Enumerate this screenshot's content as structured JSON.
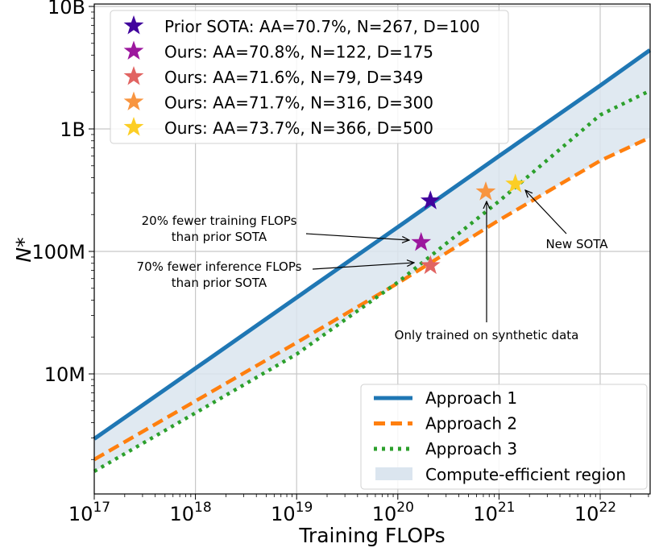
{
  "chart_data": {
    "type": "line",
    "xlabel": "Training FLOPs",
    "ylabel": "N*",
    "xscale": "log",
    "yscale": "log",
    "xlim": [
      1e+17,
      3.1e+22
    ],
    "ylim": [
      1050000.0,
      10500000000.0
    ],
    "grid": true,
    "x_ticks": [
      {
        "base": "10",
        "exp": "17",
        "value": 1e+17
      },
      {
        "base": "10",
        "exp": "18",
        "value": 1e+18
      },
      {
        "base": "10",
        "exp": "19",
        "value": 1e+19
      },
      {
        "base": "10",
        "exp": "20",
        "value": 1e+20
      },
      {
        "base": "10",
        "exp": "21",
        "value": 1e+21
      },
      {
        "base": "10",
        "exp": "22",
        "value": 1e+22
      }
    ],
    "y_ticks": [
      {
        "label": "10M",
        "value": 10000000.0
      },
      {
        "label": "100M",
        "value": 100000000.0
      },
      {
        "label": "1B",
        "value": 1000000000.0
      },
      {
        "label": "10B",
        "value": 10000000000.0
      }
    ],
    "x": [
      1e+17,
      1e+18,
      1e+19,
      1e+20,
      1e+21,
      1e+22,
      3.1e+22
    ],
    "series": [
      {
        "name": "Approach 1",
        "color": "#1f77b4",
        "style": "solid",
        "values": [
          2950000.0,
          11100000.0,
          42000000.0,
          158000000.0,
          600000000.0,
          2260000000.0,
          4400000000.0
        ]
      },
      {
        "name": "Approach 2",
        "color": "#ff7f0e",
        "style": "dashed",
        "values": [
          2000000.0,
          6000000.0,
          18000000.0,
          55000000.0,
          180000000.0,
          550000000.0,
          850000000.0
        ]
      },
      {
        "name": "Approach 3",
        "color": "#2ca02c",
        "style": "dotted",
        "values": [
          1600000.0,
          4800000.0,
          14500000.0,
          56000000.0,
          257000000.0,
          1300000000.0,
          2050000000.0
        ]
      }
    ],
    "region": {
      "name": "Compute-efficient region",
      "color": "#dbe5ef"
    },
    "legend_lines_position": "lower-right",
    "legend_points_position": "upper-left",
    "points": [
      {
        "label": "Prior SOTA: AA=70.7%, N=267, D=100",
        "x": 2.1e+20,
        "y": 267000000.0,
        "color": "#41049d"
      },
      {
        "label": "Ours: AA=70.8%, N=122, D=175",
        "x": 1.7e+20,
        "y": 122000000.0,
        "color": "#9c179e"
      },
      {
        "label": "Ours: AA=71.6%, N=79, D=349",
        "x": 2.1e+20,
        "y": 79000000.0,
        "color": "#e16462"
      },
      {
        "label": "Ours: AA=71.7%, N=316, D=300",
        "x": 7.4e+20,
        "y": 316000000.0,
        "color": "#f89540"
      },
      {
        "label": "Ours: AA=73.7%, N=366, D=500",
        "x": 1.45e+21,
        "y": 366000000.0,
        "color": "#fcce25"
      }
    ],
    "annotations": [
      {
        "lines": [
          "20% fewer training FLOPs",
          "than prior SOTA"
        ],
        "target_point": 1
      },
      {
        "lines": [
          "70% fewer inference FLOPs",
          "than prior SOTA"
        ],
        "target_point": 2
      },
      {
        "lines": [
          "Only trained on synthetic data"
        ],
        "target_point": 3
      },
      {
        "lines": [
          "New SOTA"
        ],
        "target_point": 4
      }
    ]
  }
}
